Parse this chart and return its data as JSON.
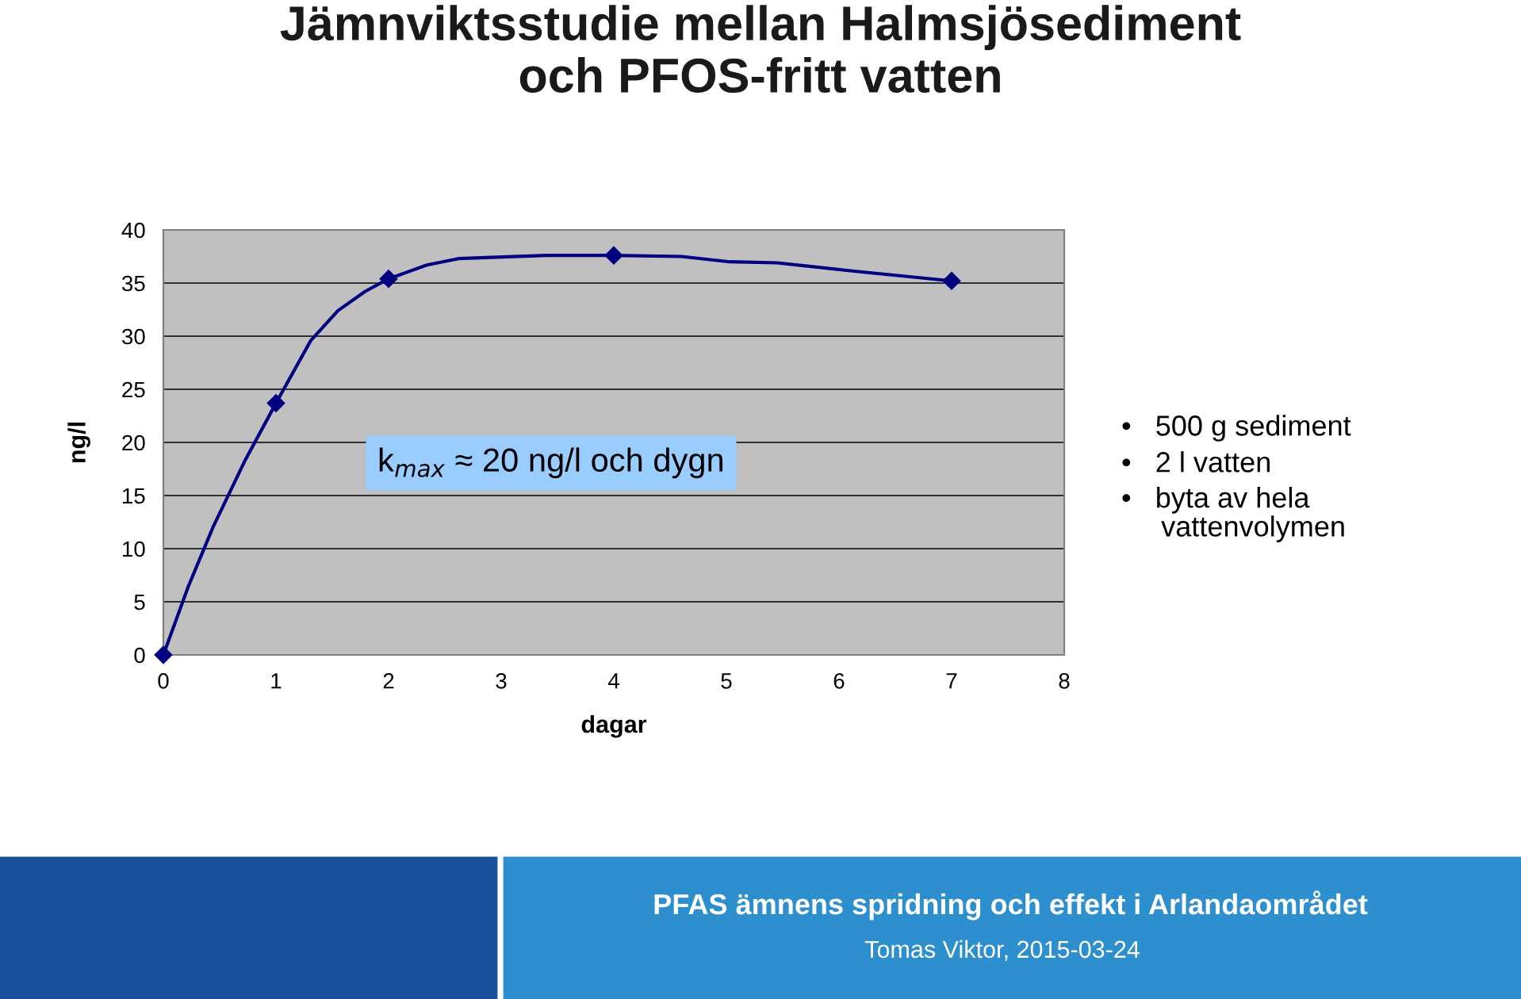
{
  "chart_data": {
    "type": "line",
    "title": "Jämnviktsstudie mellan Halmsjösediment\noch PFOS-fritt vatten",
    "xlabel": "dagar",
    "ylabel": "ng/l",
    "x": [
      0,
      1,
      2,
      4,
      7
    ],
    "series": [
      {
        "marker": "none",
        "color": "#000080",
        "x": [
          0,
          0.22,
          0.44,
          0.73,
          1,
          1.31,
          1.55,
          1.79,
          2,
          2.34,
          2.62,
          3.4,
          4,
          4.6,
          5.03,
          5.45,
          6.15,
          7
        ],
        "values": [
          0,
          6.4,
          12,
          18.4,
          23.7,
          29.6,
          32.4,
          34.2,
          35.4,
          36.7,
          37.3,
          37.6,
          37.6,
          37.5,
          37,
          36.9,
          36.1,
          35.2
        ]
      },
      {
        "type": "scatter",
        "color": "#000080",
        "values": [
          0,
          23.7,
          35.4,
          37.6,
          35.2
        ]
      }
    ],
    "xlim": [
      0,
      8
    ],
    "xticks": [
      0,
      1,
      2,
      3,
      4,
      5,
      6,
      7,
      8
    ],
    "ylim": [
      0,
      40
    ],
    "yticks": [
      0,
      5,
      10,
      15,
      20,
      25,
      30,
      35,
      40
    ],
    "grid": "y",
    "marker": "diamond",
    "line_style": "solid",
    "legend": false,
    "annotations": [
      "k$_{max}$ ≈ 20 ng/l och dygn",
      "•   500 g sediment",
      "•   2 l vatten",
      "•   byta av hela\n     vattenvolymen",
      "PFAS ämnens spridning och effekt i Arlandaområdet",
      "Tomas Viktor, 2015-03-24"
    ]
  }
}
